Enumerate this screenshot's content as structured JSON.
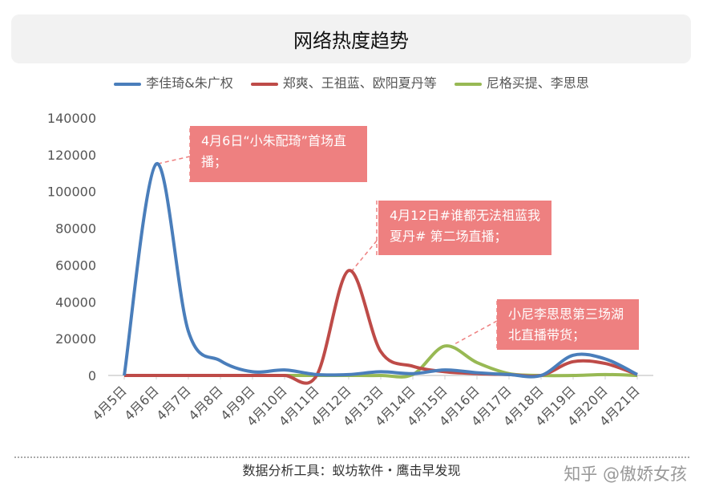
{
  "chart_data": {
    "type": "line",
    "title": "网络热度趋势",
    "categories": [
      "4月5日",
      "4月6日",
      "4月7日",
      "4月8日",
      "4月9日",
      "4月10日",
      "4月11日",
      "4月12日",
      "4月13日",
      "4月14日",
      "4月15日",
      "4月16日",
      "4月17日",
      "4月18日",
      "4月19日",
      "4月20日",
      "4月21日"
    ],
    "series": [
      {
        "name": "李佳琦&朱广权",
        "color": "#4a7ebb",
        "values": [
          0,
          115000,
          24000,
          8000,
          2000,
          3000,
          500,
          500,
          2000,
          1000,
          3000,
          1500,
          500,
          0,
          11000,
          9000,
          500
        ]
      },
      {
        "name": "郑爽、王祖蓝、欧阳夏丹等",
        "color": "#be4b48",
        "values": [
          0,
          0,
          0,
          0,
          0,
          0,
          0,
          57000,
          13000,
          5000,
          2000,
          1000,
          500,
          0,
          7500,
          6500,
          500
        ]
      },
      {
        "name": "尼格买提、李思思",
        "color": "#98b954",
        "values": [
          0,
          0,
          0,
          0,
          0,
          0,
          0,
          0,
          0,
          500,
          16000,
          7000,
          1000,
          0,
          0,
          500,
          0
        ]
      }
    ],
    "ylim": [
      0,
      140000
    ],
    "yticks": [
      0,
      20000,
      40000,
      60000,
      80000,
      100000,
      120000,
      140000
    ],
    "annotations": [
      "4月6日“小朱配琦”首场直播；",
      "4月12日#谁都无法祖蓝我夏丹# 第二场直播；",
      "小尼李思思第三场湖北直播带货；"
    ],
    "footer": "数据分析工具：蚁坊软件・鹰击早发现",
    "watermark": "知乎 @傲娇女孩"
  }
}
